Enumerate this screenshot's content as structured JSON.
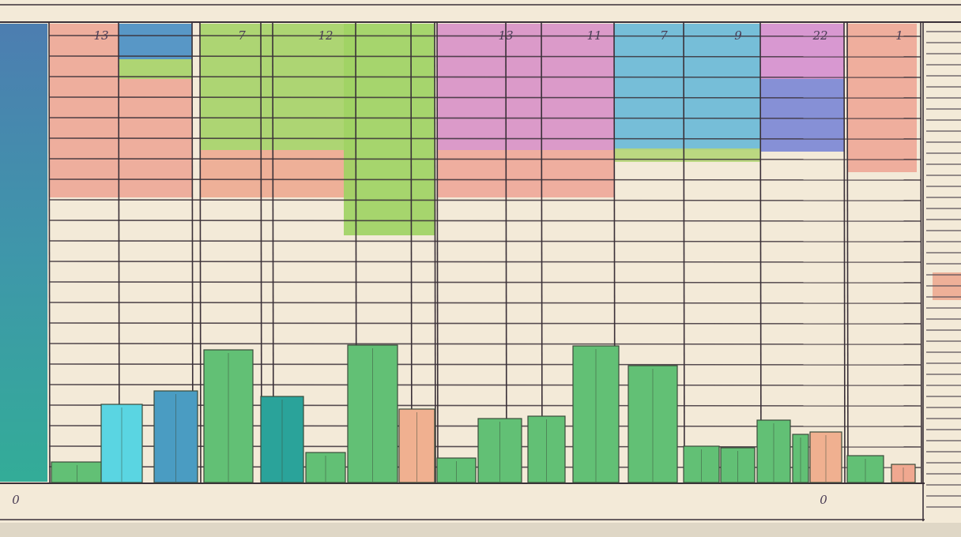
{
  "header": {
    "labels": [
      "13",
      "7",
      "12",
      "13",
      "11",
      "7",
      "9",
      "22",
      "1"
    ]
  },
  "axis": {
    "labels": [
      "0",
      "0"
    ]
  }
}
